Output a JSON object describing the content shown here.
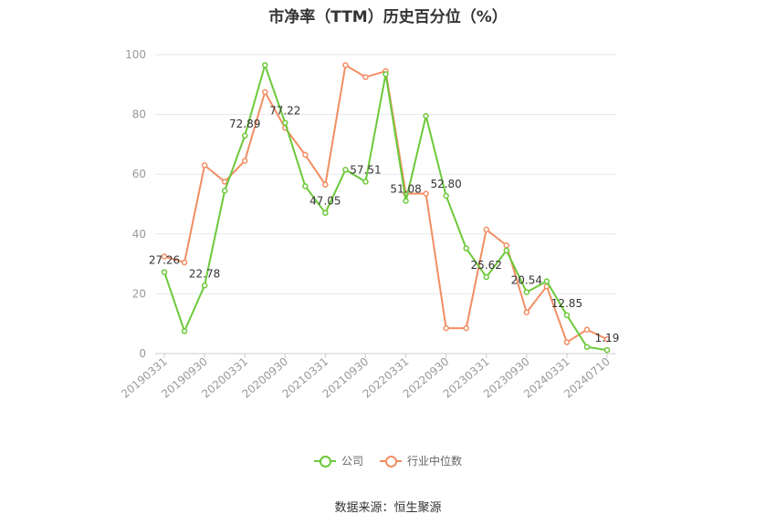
{
  "title": "市净率（TTM）历史百分位（%）",
  "source": "数据来源：恒生聚源",
  "colors": {
    "company": "#6cc93a",
    "industry": "#f28e63",
    "grid": "#e4e7ee",
    "axis": "#999999",
    "label": "#333333"
  },
  "legend": {
    "company": "公司",
    "industry": "行业中位数"
  },
  "chart_data": {
    "type": "line",
    "title": "市净率（TTM）历史百分位（%）",
    "ylim": [
      0,
      100
    ],
    "yticks": [
      0,
      20,
      40,
      60,
      80,
      100
    ],
    "grid": true,
    "legend_position": "bottom",
    "x_tick_labels": [
      "20190331",
      "20190930",
      "20200331",
      "20200930",
      "20210331",
      "20210930",
      "20220331",
      "20220930",
      "20230331",
      "20230930",
      "20240331",
      "20240710"
    ],
    "series": [
      {
        "name": "公司",
        "values": [
          27.26,
          7.5,
          22.78,
          54.5,
          72.89,
          96.5,
          77.22,
          56,
          47.05,
          61.5,
          57.51,
          93.5,
          51.08,
          79.5,
          52.8,
          35.2,
          25.62,
          34.5,
          20.54,
          24.2,
          12.85,
          2.2,
          1.19
        ]
      },
      {
        "name": "行业中位数",
        "values": [
          32.5,
          30.5,
          63,
          57.5,
          64.5,
          87.5,
          75.5,
          66.5,
          56.5,
          96.5,
          92.5,
          94.5,
          53.5,
          53.5,
          8.5,
          8.5,
          41.5,
          36.2,
          13.8,
          22.5,
          3.8,
          8,
          4.8
        ]
      }
    ],
    "data_labels": [
      {
        "index": 0,
        "text": "27.26"
      },
      {
        "index": 2,
        "text": "22.78"
      },
      {
        "index": 4,
        "text": "72.89"
      },
      {
        "index": 6,
        "text": "77.22"
      },
      {
        "index": 8,
        "text": "47.05"
      },
      {
        "index": 10,
        "text": "57.51"
      },
      {
        "index": 12,
        "text": "51.08"
      },
      {
        "index": 14,
        "text": "52.80"
      },
      {
        "index": 16,
        "text": "25.62"
      },
      {
        "index": 18,
        "text": "20.54"
      },
      {
        "index": 20,
        "text": "12.85"
      },
      {
        "index": 22,
        "text": "1.19"
      }
    ]
  }
}
